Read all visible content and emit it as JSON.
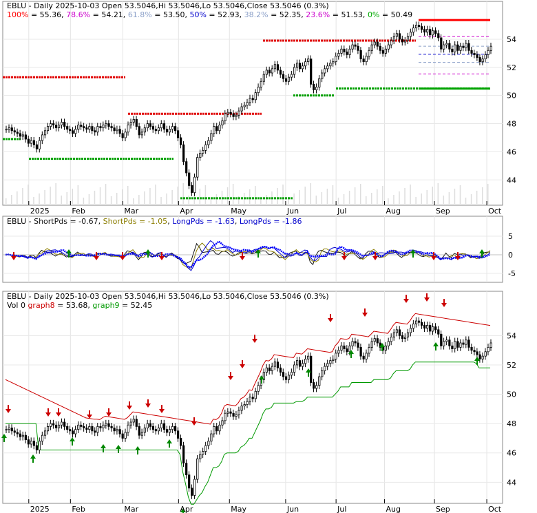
{
  "chart_data": [
    {
      "type": "candlestick",
      "title": "EBLU - Daily 2025-10-03 Open 53.5046,Hi 53.5046,Lo 53.5046,Close 53.5046 (0.3%)",
      "fib_levels": [
        {
          "label": "100%",
          "value": 55.36,
          "color": "#ff0000"
        },
        {
          "label": "78.6%",
          "value": 54.21,
          "color": "#cc00cc"
        },
        {
          "label": "61.8%",
          "value": 53.5,
          "color": "#8a9fc8"
        },
        {
          "label": "50%",
          "value": 52.93,
          "color": "#0000cc"
        },
        {
          "label": "38.2%",
          "value": 52.35,
          "color": "#8a9fc8"
        },
        {
          "label": "23.6%",
          "value": 51.53,
          "color": "#cc00cc"
        },
        {
          "label": "0%",
          "value": 50.49,
          "color": "#00aa00"
        }
      ],
      "yticks": [
        44,
        46,
        48,
        50,
        52,
        54
      ],
      "ylim": [
        42.3,
        56.2
      ],
      "xticks": [
        "2025",
        "Feb",
        "Mar",
        "Apr",
        "May",
        "Jun",
        "Jul",
        "Aug",
        "Sep",
        "Oct"
      ],
      "closes": [
        47.6,
        47.7,
        47.5,
        47.4,
        47.3,
        47.1,
        47.2,
        46.9,
        46.6,
        46.8,
        46.5,
        46.2,
        46.8,
        47.2,
        47.5,
        47.8,
        48.0,
        47.9,
        47.7,
        47.9,
        48.1,
        47.8,
        47.6,
        47.5,
        47.3,
        47.6,
        47.9,
        47.8,
        47.7,
        47.6,
        47.8,
        47.5,
        47.4,
        47.8,
        47.7,
        47.9,
        48.0,
        47.8,
        47.7,
        47.5,
        47.6,
        47.3,
        47.0,
        47.4,
        47.9,
        48.1,
        48.3,
        47.8,
        47.2,
        47.4,
        47.7,
        48.0,
        47.8,
        47.6,
        47.5,
        47.7,
        48.0,
        47.6,
        47.4,
        47.6,
        47.8,
        47.5,
        47.0,
        46.5,
        45.3,
        44.5,
        43.6,
        43.1,
        44.2,
        45.6,
        45.9,
        46.1,
        46.5,
        46.8,
        47.3,
        47.8,
        47.5,
        47.9,
        48.2,
        48.7,
        48.8,
        48.7,
        48.5,
        48.6,
        48.9,
        49.2,
        49.3,
        49.5,
        49.8,
        49.7,
        50.2,
        50.6,
        51.0,
        51.5,
        51.8,
        51.6,
        51.9,
        52.2,
        51.8,
        51.5,
        51.2,
        51.0,
        51.3,
        51.5,
        52.0,
        52.3,
        51.9,
        52.1,
        52.4,
        52.6,
        50.8,
        50.4,
        50.6,
        51.2,
        51.6,
        51.9,
        52.1,
        52.3,
        52.4,
        52.8,
        53.0,
        53.3,
        53.1,
        52.9,
        53.3,
        53.6,
        53.5,
        53.2,
        52.6,
        52.4,
        52.8,
        53.2,
        53.6,
        53.8,
        53.5,
        53.2,
        53.0,
        53.3,
        53.6,
        53.9,
        54.2,
        54.4,
        54.0,
        53.8,
        53.9,
        54.2,
        54.5,
        54.8,
        55.0,
        54.9,
        54.7,
        54.5,
        54.7,
        54.3,
        54.6,
        54.4,
        54.1,
        53.3,
        53.6,
        53.7,
        53.3,
        53.1,
        53.6,
        53.2,
        53.5,
        53.4,
        53.7,
        53.2,
        53.0,
        52.9,
        52.7,
        52.4,
        52.6,
        52.9,
        53.2,
        53.5
      ],
      "volume_label": "Vol 0"
    },
    {
      "type": "line",
      "title": "EBLU - ShortPds = -0.67, ShortPds = -1.05, LongPds = -1.63, LongPds = -1.86",
      "series": [
        {
          "name": "ShortPds = -0.67",
          "color": "#111111"
        },
        {
          "name": "ShortPds = -1.05",
          "color": "#8b7d00"
        },
        {
          "name": "LongPds = -1.63",
          "color": "#0000cc"
        },
        {
          "name": "LongPds = -1.86",
          "color": "#0000ff"
        }
      ],
      "yticks": [
        5,
        0,
        -5
      ]
    },
    {
      "type": "candlestick",
      "title": "EBLU - Daily 2025-10-03 Open 53.5046,Hi 53.5046,Lo 53.5046,Close 53.5046 (0.3%)",
      "legend": [
        {
          "name": "Vol 0",
          "color": "#000000"
        },
        {
          "name": "graph8 = 53.68",
          "color": "#cc0000"
        },
        {
          "name": "graph9 = 52.45",
          "color": "#009900"
        }
      ],
      "yticks": [
        44,
        46,
        48,
        50,
        52,
        54
      ],
      "xticks": [
        "2025",
        "Feb",
        "Mar",
        "Apr",
        "May",
        "Jun",
        "Jul",
        "Aug",
        "Sep",
        "Oct"
      ]
    }
  ],
  "panel1": {
    "title": "EBLU - Daily 2025-10-03 Open 53.5046,Hi 53.5046,Lo 53.5046,Close 53.5046 (0.3%)",
    "fib": [
      {
        "label": "100%",
        "eq": " = 55.36, "
      },
      {
        "label": "78.6%",
        "eq": " = 54.21, "
      },
      {
        "label": "61.8%",
        "eq": " = 53.50, "
      },
      {
        "label": "50%",
        "eq": " = 52.93, "
      },
      {
        "label": "38.2%",
        "eq": " = 52.35, "
      },
      {
        "label": "23.6%",
        "eq": " = 51.53, "
      },
      {
        "label": "0%",
        "eq": " = 50.49"
      }
    ]
  },
  "panel2": {
    "prefix": "EBLU - ",
    "items": [
      {
        "text": "ShortPds = -0.67",
        "color": "#111111"
      },
      {
        "text": ", ",
        "color": "#000000"
      },
      {
        "text": "ShortPds = -1.05",
        "color": "#8b7d00"
      },
      {
        "text": ", ",
        "color": "#000000"
      },
      {
        "text": "LongPds = -1.63",
        "color": "#0000cc"
      },
      {
        "text": ", ",
        "color": "#000000"
      },
      {
        "text": "LongPds = -1.86",
        "color": "#0000cc"
      }
    ]
  },
  "panel3": {
    "title": "EBLU - Daily 2025-10-03 Open 53.5046,Hi 53.5046,Lo 53.5046,Close 53.5046 (0.3%)",
    "line2": [
      {
        "text": "Vol 0 ",
        "color": "#000000"
      },
      {
        "text": "graph8",
        "color": "#cc0000"
      },
      {
        "text": " = 53.68, ",
        "color": "#000000"
      },
      {
        "text": "graph9",
        "color": "#009900"
      },
      {
        "text": " = 52.45",
        "color": "#000000"
      }
    ]
  }
}
